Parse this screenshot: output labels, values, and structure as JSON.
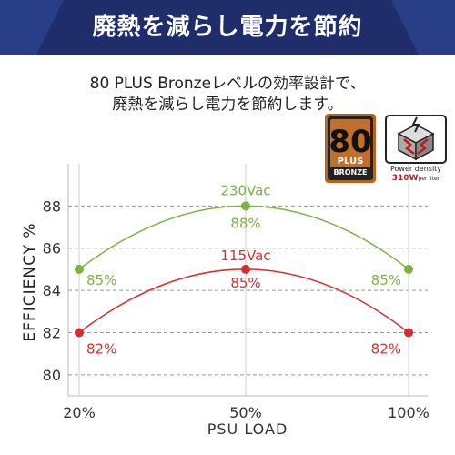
{
  "banner": {
    "title": "廃熱を減らし電力を節約"
  },
  "subtitle": {
    "line1": "80 PLUS Bronzeレベルの効率設計で、",
    "line2": "廃熱を減らし電力を節約します。"
  },
  "badges": {
    "plus80": {
      "number": "80",
      "plus": "PLUS",
      "tier": "BRONZE"
    },
    "power_density": {
      "label": "Power density",
      "value": "310W",
      "unit": "per liter"
    }
  },
  "chart_data": {
    "type": "line",
    "title": "",
    "xlabel": "PSU LOAD",
    "ylabel": "EFFICIENCY %",
    "categories": [
      "20%",
      "50%",
      "100%"
    ],
    "ylim": [
      79,
      90
    ],
    "yticks": [
      80,
      82,
      84,
      86,
      88
    ],
    "grid": true,
    "series": [
      {
        "name": "230Vac",
        "values": [
          85,
          88,
          85
        ],
        "labels": [
          "85%",
          "88%",
          "85%"
        ],
        "color": "#7cb342"
      },
      {
        "name": "115Vac",
        "values": [
          82,
          85,
          82
        ],
        "labels": [
          "82%",
          "85%",
          "82%"
        ],
        "color": "#d32f2f"
      }
    ]
  }
}
